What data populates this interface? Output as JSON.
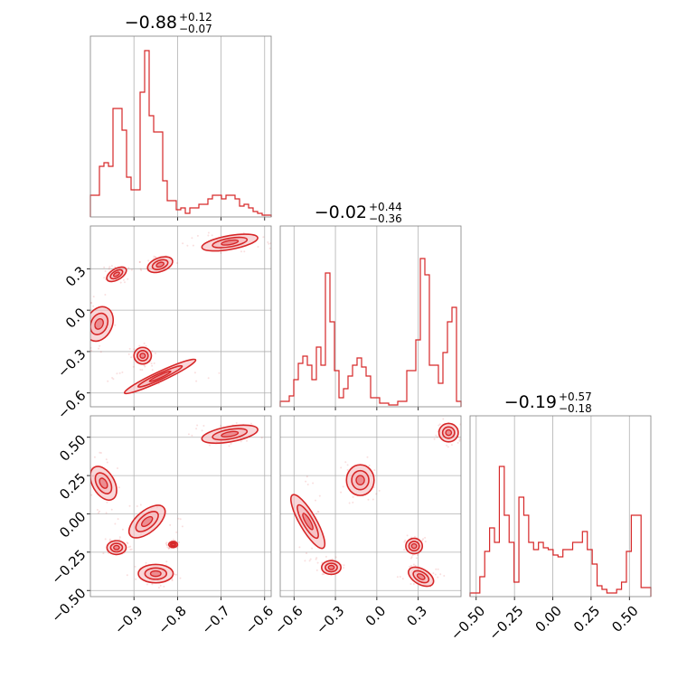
{
  "chart_data": {
    "type": "corner",
    "color": "#d62728",
    "fill_color": "#f4b6b9",
    "grid": true,
    "parameters": [
      {
        "median": "−0.88",
        "plus": "+0.12",
        "minus": "−0.07",
        "range": [
          -1.0,
          -0.585
        ],
        "ticks": [
          -0.9,
          -0.8,
          -0.7,
          -0.6
        ],
        "tick_labels": [
          "−0.9",
          "−0.8",
          "−0.7",
          "−0.6"
        ],
        "hist": [
          0.12,
          0.12,
          0.28,
          0.3,
          0.28,
          0.6,
          0.6,
          0.48,
          0.22,
          0.15,
          0.15,
          0.69,
          0.92,
          0.56,
          0.47,
          0.47,
          0.2,
          0.09,
          0.09,
          0.04,
          0.05,
          0.02,
          0.05,
          0.05,
          0.07,
          0.07,
          0.1,
          0.12,
          0.12,
          0.1,
          0.12,
          0.12,
          0.1,
          0.06,
          0.07,
          0.05,
          0.03,
          0.02,
          0.01,
          0.01
        ]
      },
      {
        "median": "−0.02",
        "plus": "+0.44",
        "minus": "−0.36",
        "range": [
          -0.7,
          0.61
        ],
        "ticks": [
          -0.6,
          -0.3,
          0.0,
          0.3
        ],
        "tick_labels": [
          "−0.6",
          "−0.3",
          "0.0",
          "0.3"
        ],
        "hist": [
          0.03,
          0.03,
          0.06,
          0.15,
          0.24,
          0.28,
          0.23,
          0.15,
          0.33,
          0.23,
          0.74,
          0.47,
          0.2,
          0.05,
          0.1,
          0.17,
          0.23,
          0.27,
          0.22,
          0.17,
          0.05,
          0.05,
          0.02,
          0.02,
          0.01,
          0.01,
          0.03,
          0.03,
          0.2,
          0.2,
          0.37,
          0.82,
          0.73,
          0.23,
          0.23,
          0.13,
          0.3,
          0.47,
          0.55,
          0.03
        ]
      },
      {
        "median": "−0.19",
        "plus": "+0.57",
        "minus": "−0.18",
        "range": [
          -0.54,
          0.64
        ],
        "ticks": [
          -0.5,
          -0.25,
          0.0,
          0.25,
          0.5
        ],
        "tick_labels": [
          "−0.50",
          "−0.25",
          "0.00",
          "0.25",
          "0.50"
        ],
        "hist": [
          0.02,
          0.02,
          0.11,
          0.25,
          0.38,
          0.3,
          0.72,
          0.45,
          0.3,
          0.08,
          0.55,
          0.45,
          0.3,
          0.26,
          0.3,
          0.27,
          0.26,
          0.23,
          0.22,
          0.26,
          0.26,
          0.3,
          0.3,
          0.36,
          0.26,
          0.18,
          0.06,
          0.04,
          0.02,
          0.02,
          0.04,
          0.08,
          0.25,
          0.45,
          0.45,
          0.05,
          0.05
        ]
      }
    ],
    "contours": [
      {
        "panel": "p1_p0",
        "x": -0.94,
        "y": 0.26,
        "rx": 0.025,
        "ry": 0.04,
        "angle": 30
      },
      {
        "panel": "p1_p0",
        "x": -0.84,
        "y": 0.33,
        "rx": 0.03,
        "ry": 0.05,
        "angle": 20
      },
      {
        "panel": "p1_p0",
        "x": -0.68,
        "y": 0.49,
        "rx": 0.065,
        "ry": 0.05,
        "angle": 10
      },
      {
        "panel": "p1_p0",
        "x": -0.98,
        "y": -0.1,
        "rx": 0.03,
        "ry": 0.13,
        "angle": -25
      },
      {
        "panel": "p1_p0",
        "x": -0.88,
        "y": -0.33,
        "rx": 0.02,
        "ry": 0.06,
        "angle": 0
      },
      {
        "panel": "p1_p0",
        "x": -0.84,
        "y": -0.48,
        "rx": 0.09,
        "ry": 0.035,
        "angle": 25
      },
      {
        "panel": "p2_p0",
        "x": -0.97,
        "y": 0.2,
        "rx": 0.025,
        "ry": 0.12,
        "angle": 30
      },
      {
        "panel": "p2_p0",
        "x": -0.68,
        "y": 0.52,
        "rx": 0.065,
        "ry": 0.05,
        "angle": 10
      },
      {
        "panel": "p2_p0",
        "x": -0.87,
        "y": -0.05,
        "rx": 0.05,
        "ry": 0.07,
        "angle": 40
      },
      {
        "panel": "p2_p0",
        "x": -0.94,
        "y": -0.22,
        "rx": 0.022,
        "ry": 0.045,
        "angle": 0
      },
      {
        "panel": "p2_p0",
        "x": -0.85,
        "y": -0.39,
        "rx": 0.04,
        "ry": 0.06,
        "angle": 0
      },
      {
        "panel": "p2_p0",
        "x": -0.81,
        "y": -0.2,
        "rx": 0.01,
        "ry": 0.02,
        "angle": 0
      },
      {
        "panel": "p2_p1",
        "x": -0.5,
        "y": -0.05,
        "rx": 0.06,
        "ry": 0.2,
        "angle": 30
      },
      {
        "panel": "p2_p1",
        "x": -0.33,
        "y": -0.35,
        "rx": 0.07,
        "ry": 0.045,
        "angle": 0
      },
      {
        "panel": "p2_p1",
        "x": -0.12,
        "y": 0.22,
        "rx": 0.1,
        "ry": 0.1,
        "angle": 0
      },
      {
        "panel": "p2_p1",
        "x": 0.27,
        "y": -0.21,
        "rx": 0.06,
        "ry": 0.05,
        "angle": 0
      },
      {
        "panel": "p2_p1",
        "x": 0.32,
        "y": -0.41,
        "rx": 0.1,
        "ry": 0.05,
        "angle": -30
      },
      {
        "panel": "p2_p1",
        "x": 0.52,
        "y": 0.53,
        "rx": 0.07,
        "ry": 0.06,
        "angle": 0
      }
    ]
  }
}
